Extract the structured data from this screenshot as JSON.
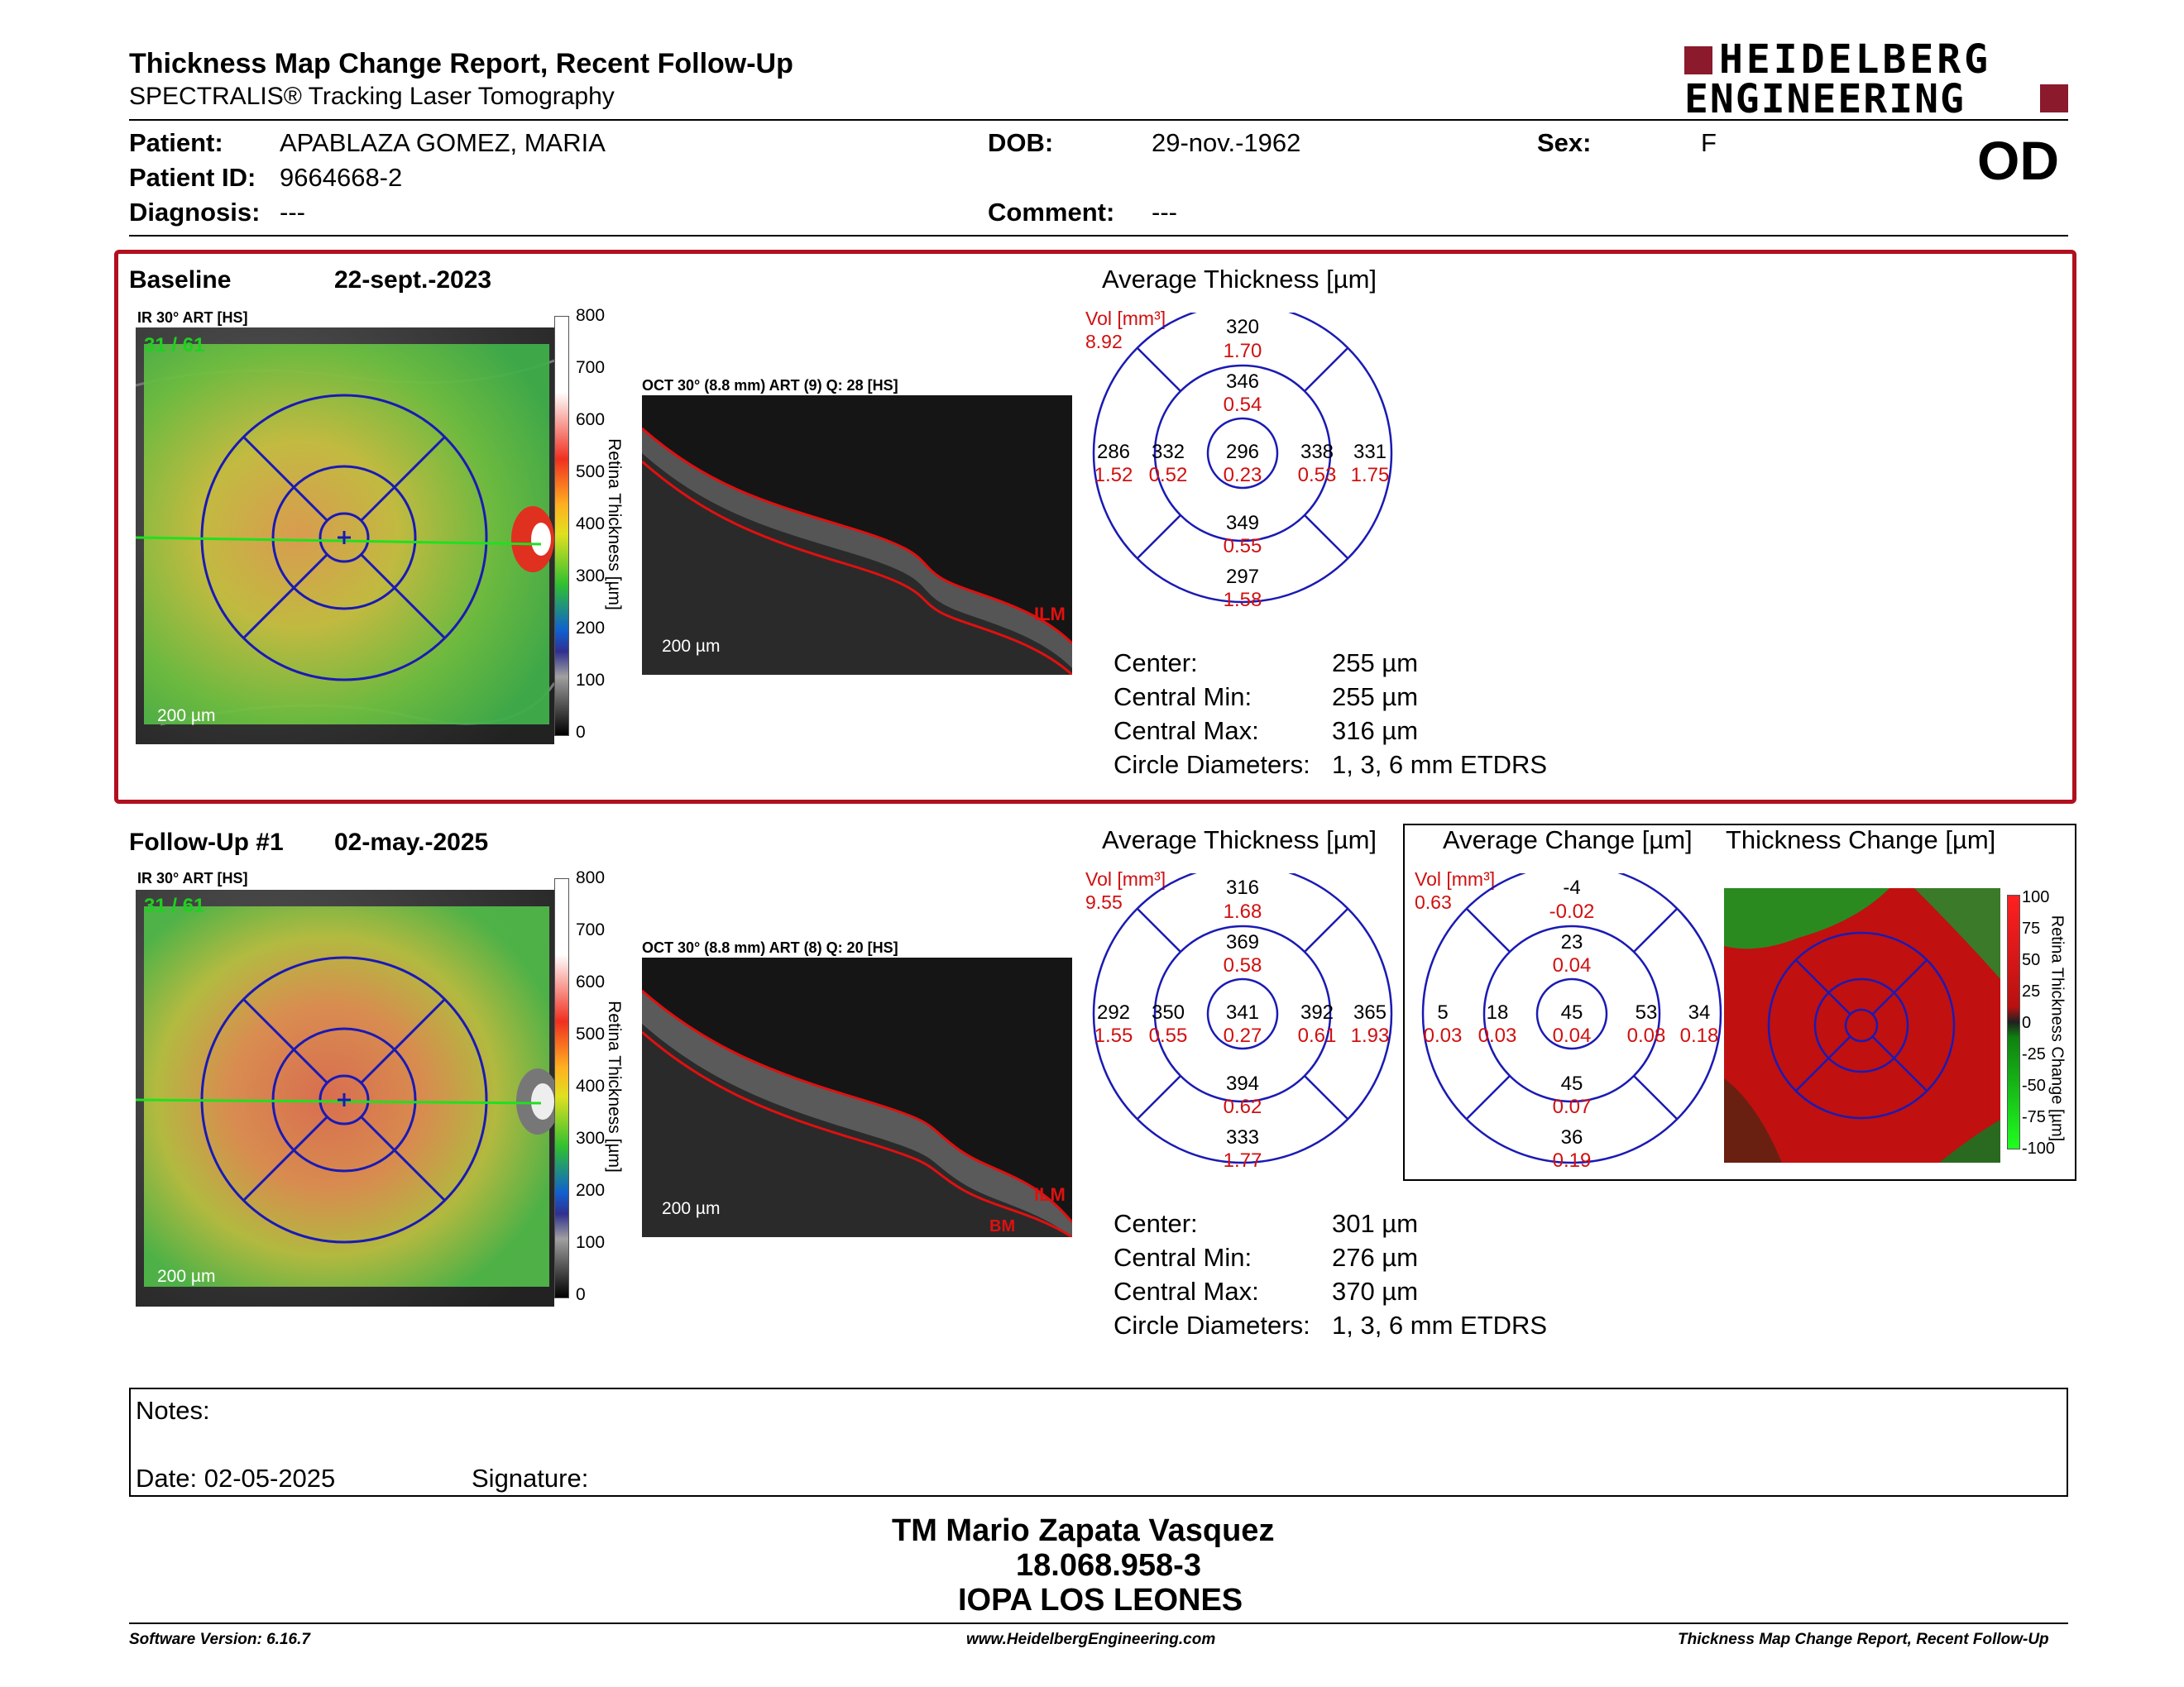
{
  "header": {
    "title": "Thickness Map Change Report, Recent Follow-Up",
    "subtitle": "SPECTRALIS® Tracking Laser Tomography",
    "logo_line1": "HEIDELBERG",
    "logo_line2": "ENGINEERING",
    "eye": "OD"
  },
  "patient": {
    "patient_label": "Patient:",
    "patient_value": "APABLAZA GOMEZ, MARIA",
    "id_label": "Patient ID:",
    "id_value": "9664668-2",
    "diag_label": "Diagnosis:",
    "diag_value": "---",
    "dob_label": "DOB:",
    "dob_value": "29-nov.-1962",
    "comment_label": "Comment:",
    "comment_value": "---",
    "sex_label": "Sex:",
    "sex_value": "F"
  },
  "colors": {
    "accent_red": "#b0101f",
    "grid_blue": "#1a1ab4",
    "value_red": "#d01010"
  },
  "baseline": {
    "label": "Baseline",
    "date": "22-sept.-2023",
    "ir_caption": "IR 30° ART [HS]",
    "ir_counter": "31 / 61",
    "ir_scale": "200 µm",
    "oct_caption": "OCT 30° (8.8 mm) ART (9) Q: 28 [HS]",
    "oct_scale": "200 µm",
    "oct_ilm": "ILM",
    "colorbar_ticks": [
      "800",
      "700",
      "600",
      "500",
      "400",
      "300",
      "200",
      "100",
      "0"
    ],
    "colorbar_label": "Retina Thickness [µm]",
    "avg_title": "Average Thickness [µm]",
    "vol_label": "Vol [mm³]",
    "vol_value": "8.92",
    "grid": {
      "center": {
        "t": "296",
        "v": "0.23"
      },
      "inner_sup": {
        "t": "346",
        "v": "0.54"
      },
      "inner_inf": {
        "t": "349",
        "v": "0.55"
      },
      "inner_temp": {
        "t": "332",
        "v": "0.52"
      },
      "inner_nas": {
        "t": "338",
        "v": "0.53"
      },
      "outer_sup": {
        "t": "320",
        "v": "1.70"
      },
      "outer_inf": {
        "t": "297",
        "v": "1.58"
      },
      "outer_temp": {
        "t": "286",
        "v": "1.52"
      },
      "outer_nas": {
        "t": "331",
        "v": "1.75"
      }
    },
    "stats": [
      {
        "label": "Center:",
        "value": "255 µm"
      },
      {
        "label": "Central Min:",
        "value": "255 µm"
      },
      {
        "label": "Central Max:",
        "value": "316 µm"
      },
      {
        "label": "Circle Diameters:",
        "value": "1, 3, 6 mm ETDRS"
      }
    ]
  },
  "followup": {
    "label": "Follow-Up #1",
    "date": "02-may.-2025",
    "ir_caption": "IR 30° ART [HS]",
    "ir_counter": "31 / 61",
    "ir_scale": "200 µm",
    "oct_caption": "OCT 30° (8.8 mm) ART (8) Q: 20 [HS]",
    "oct_scale": "200 µm",
    "oct_ilm": "ILM",
    "oct_bm": "BM",
    "colorbar_ticks": [
      "800",
      "700",
      "600",
      "500",
      "400",
      "300",
      "200",
      "100",
      "0"
    ],
    "colorbar_label": "Retina Thickness [µm]",
    "avg_title": "Average Thickness [µm]",
    "vol_label": "Vol [mm³]",
    "vol_value": "9.55",
    "grid": {
      "center": {
        "t": "341",
        "v": "0.27"
      },
      "inner_sup": {
        "t": "369",
        "v": "0.58"
      },
      "inner_inf": {
        "t": "394",
        "v": "0.62"
      },
      "inner_temp": {
        "t": "350",
        "v": "0.55"
      },
      "inner_nas": {
        "t": "392",
        "v": "0.61"
      },
      "outer_sup": {
        "t": "316",
        "v": "1.68"
      },
      "outer_inf": {
        "t": "333",
        "v": "1.77"
      },
      "outer_temp": {
        "t": "292",
        "v": "1.55"
      },
      "outer_nas": {
        "t": "365",
        "v": "1.93"
      }
    },
    "change_title": "Average Change [µm]",
    "change_vol_label": "Vol [mm³]",
    "change_vol_value": "0.63",
    "change_grid": {
      "center": {
        "t": "45",
        "v": "0.04"
      },
      "inner_sup": {
        "t": "23",
        "v": "0.04"
      },
      "inner_inf": {
        "t": "45",
        "v": "0.07"
      },
      "inner_temp": {
        "t": "18",
        "v": "0.03"
      },
      "inner_nas": {
        "t": "53",
        "v": "0.08"
      },
      "outer_sup": {
        "t": "-4",
        "v": "-0.02"
      },
      "outer_inf": {
        "t": "36",
        "v": "0.19"
      },
      "outer_temp": {
        "t": "5",
        "v": "0.03"
      },
      "outer_nas": {
        "t": "34",
        "v": "0.18"
      }
    },
    "thick_change_title": "Thickness Change [µm]",
    "change_ticks": [
      "100",
      "75",
      "50",
      "25",
      "0",
      "-25",
      "-50",
      "-75",
      "-100"
    ],
    "change_bar_label": "Retina Thickness Change [µm]",
    "stats": [
      {
        "label": "Center:",
        "value": "301 µm"
      },
      {
        "label": "Central Min:",
        "value": "276 µm"
      },
      {
        "label": "Central Max:",
        "value": "370 µm"
      },
      {
        "label": "Circle Diameters:",
        "value": "1, 3, 6 mm ETDRS"
      }
    ]
  },
  "notes": {
    "notes_label": "Notes:",
    "date_label": "Date: 02-05-2025",
    "signature_label": "Signature:"
  },
  "signature": {
    "name": "TM Mario Zapata Vasquez",
    "id": "18.068.958-3",
    "org": "IOPA LOS LEONES"
  },
  "footer": {
    "left": "Software Version: 6.16.7",
    "center": "www.HeidelbergEngineering.com",
    "right": "Thickness Map Change Report, Recent Follow-Up"
  }
}
